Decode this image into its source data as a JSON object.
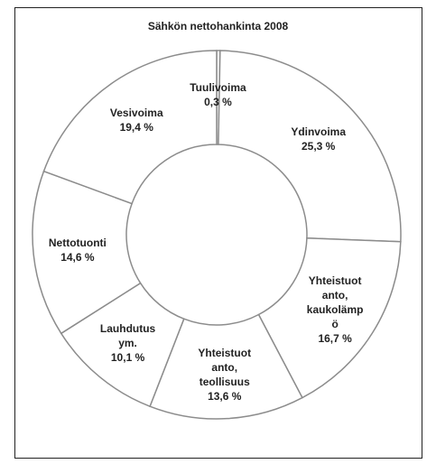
{
  "chart_data": {
    "type": "donut",
    "title": "Sähkön nettohankinta 2008",
    "categories": [
      "Tuulivoima",
      "Ydinvoima",
      "Yhteistuot\nanto,\nkaukolämp\nö",
      "Yhteistuot\nanto,\nteollisuus",
      "Lauhdutus\nym.",
      "Nettotuonti",
      "Vesivoima"
    ],
    "values": [
      0.3,
      25.3,
      16.7,
      13.6,
      10.1,
      14.6,
      19.4
    ],
    "value_labels": [
      "0,3 %",
      "25,3 %",
      "16,7 %",
      "13,6 %",
      "10,1 %",
      "14,6 %",
      "19,4 %"
    ],
    "color": "#ffffff",
    "edge_color": "#8c8c8c"
  }
}
